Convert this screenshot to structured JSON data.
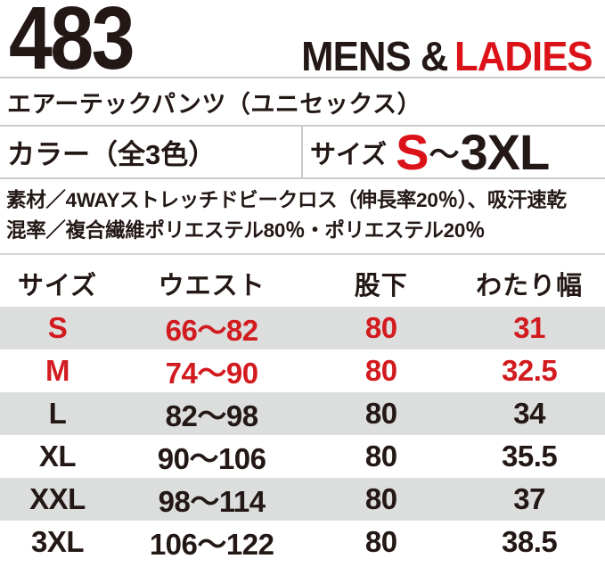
{
  "header": {
    "product_number": "483",
    "audience_black": "MENS &",
    "audience_red": "LADIES"
  },
  "product_name": "エアーテックパンツ（ユニセックス）",
  "color_info": "カラー（全3色）",
  "size_info": {
    "label": "サイズ",
    "range_start": "S",
    "tilde": "～",
    "range_end": "3XL"
  },
  "material": {
    "line1": "素材／4WAYストレッチドビークロス（伸長率20％）、吸汗速乾",
    "line2": "混率／複合繊維ポリエステル80％・ポリエステル20％"
  },
  "size_table": {
    "columns": [
      "サイズ",
      "ウエスト",
      "股下",
      "わたり幅"
    ],
    "rows": [
      {
        "size": "S",
        "waist": "66～82",
        "inseam": "80",
        "thigh": "31"
      },
      {
        "size": "M",
        "waist": "74～90",
        "inseam": "80",
        "thigh": "32.5"
      },
      {
        "size": "L",
        "waist": "82～98",
        "inseam": "80",
        "thigh": "34"
      },
      {
        "size": "XL",
        "waist": "90～106",
        "inseam": "80",
        "thigh": "35.5"
      },
      {
        "size": "XXL",
        "waist": "98～114",
        "inseam": "80",
        "thigh": "37"
      },
      {
        "size": "3XL",
        "waist": "106～122",
        "inseam": "80",
        "thigh": "38.5"
      }
    ]
  },
  "colors": {
    "text_dark": "#231815",
    "accent_red": "#dc1219",
    "table_red": "#d21b1f",
    "row_stripe": "#dcdddd",
    "divider": "#c9caca"
  }
}
